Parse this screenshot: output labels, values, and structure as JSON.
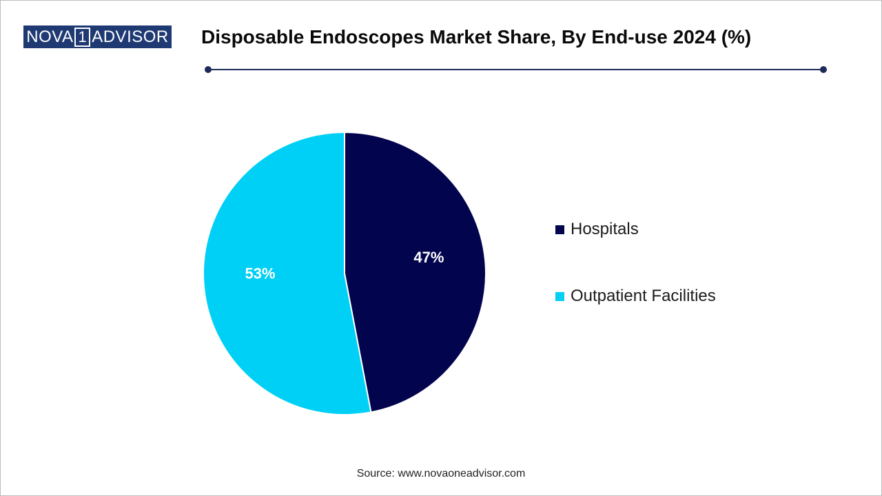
{
  "logo": {
    "text_left": "NOVA",
    "text_one": "1",
    "text_right": "ADVISOR"
  },
  "title": "Disposable Endoscopes Market Share, By End-use 2024 (%)",
  "source": "Source: www.novaoneadvisor.com",
  "colors": {
    "hospitals": "#03044e",
    "outpatient": "#00d0f5",
    "accent": "#1f2a5a"
  },
  "chart_data": {
    "type": "pie",
    "title": "Disposable Endoscopes Market Share, By End-use 2024 (%)",
    "categories": [
      "Hospitals",
      "Outpatient Facilities"
    ],
    "values": [
      47,
      53
    ],
    "labels": [
      "47%",
      "53%"
    ],
    "legend_position": "right"
  }
}
